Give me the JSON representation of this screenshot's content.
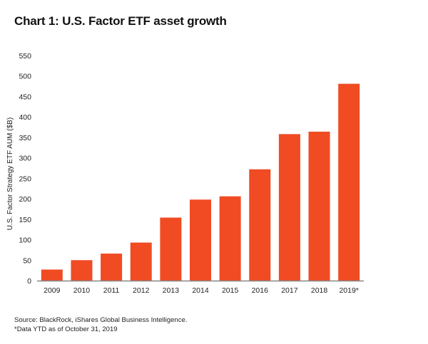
{
  "chart_data": {
    "type": "bar",
    "title": "Chart 1: U.S. Factor ETF asset growth",
    "ylabel": "U.S. Factor Strategy ETF AUM ($B)",
    "xlabel": "",
    "categories": [
      "2009",
      "2010",
      "2011",
      "2012",
      "2013",
      "2014",
      "2015",
      "2016",
      "2017",
      "2018",
      "2019*"
    ],
    "values": [
      27,
      50,
      66,
      93,
      154,
      198,
      206,
      272,
      358,
      364,
      481
    ],
    "ylim": [
      0,
      550
    ],
    "yticks": [
      0,
      50,
      100,
      150,
      200,
      250,
      300,
      350,
      400,
      450,
      500,
      550
    ],
    "grid": false,
    "bar_color": "#f04b23"
  },
  "footnotes": {
    "source": "Source: BlackRock, iShares Global Business Intelligence.",
    "note": "*Data YTD as of October 31, 2019"
  }
}
